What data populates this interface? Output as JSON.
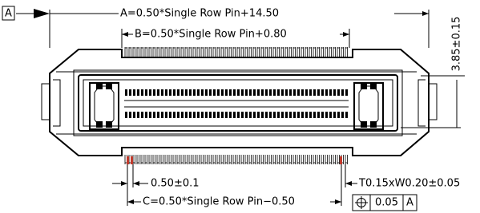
{
  "datum_label": "A",
  "dimensions": {
    "overall_length": "A=0.50*Single Row Pin+14.50",
    "pin_span": "B=0.50*Single Row Pin+0.80",
    "height": "3.85±0.15",
    "pitch": "0.50±0.1",
    "pin_size": "T0.15xW0.20±0.05",
    "tail_span": "C=0.50*Single Row Pin−0.50"
  },
  "tolerance_frame": {
    "value": "0.05",
    "datum": "A"
  }
}
